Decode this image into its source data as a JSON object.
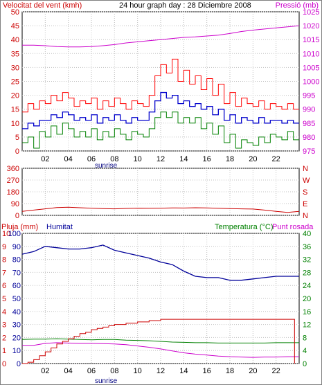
{
  "header": {
    "wind_title": "Velocitat del vent (kmh)",
    "graph_title": "24 hour graph day : 28 Diciembre 2008",
    "pressure_title": "Pressió (mb)"
  },
  "hours": [
    "02",
    "04",
    "06",
    "08",
    "10",
    "12",
    "14",
    "16",
    "18",
    "20",
    "22"
  ],
  "sunrise_label": "sunrise",
  "colors": {
    "frame": "#000000",
    "grid": "#c0c0c0",
    "wind_gust": "#ff0000",
    "wind_avg": "#0000cc",
    "wind_low": "#008000",
    "pressure": "#cc00cc",
    "direction": "#cc0000",
    "rain": "#cc0000",
    "humidity": "#000099",
    "temperature": "#008000",
    "dewpoint": "#cc00cc",
    "wind_axis_text": "#cc0000",
    "pressure_axis_text": "#cc00cc",
    "rain_axis_text": "#cc0000",
    "humidity_axis_text": "#000099",
    "temperature_axis_text": "#008000"
  },
  "chart_data": [
    {
      "type": "line",
      "panel": "wind",
      "title": "24 hour graph day : 28 Diciembre 2008",
      "x_range": [
        0,
        24
      ],
      "x_ticks": [
        "02",
        "04",
        "06",
        "08",
        "10",
        "12",
        "14",
        "16",
        "18",
        "20",
        "22"
      ],
      "left_axis": {
        "label": "Velocitat del vent (kmh)",
        "range": [
          0,
          50
        ],
        "ticks": [
          "0",
          "5",
          "10",
          "15",
          "20",
          "25",
          "30",
          "35",
          "40",
          "45",
          "50"
        ]
      },
      "right_axis": {
        "label": "Pressió (mb)",
        "range": [
          975,
          1025
        ],
        "ticks": [
          "975",
          "980",
          "985",
          "990",
          "995",
          "1000",
          "1005",
          "1010",
          "1015",
          "1020",
          "1025"
        ]
      },
      "grid": true,
      "series": [
        {
          "key": "wind_gust",
          "axis": "left",
          "x": [
            0,
            0.5,
            1,
            1.5,
            2,
            2.5,
            3,
            3.5,
            4,
            4.5,
            5,
            5.5,
            6,
            6.5,
            7,
            7.5,
            8,
            8.5,
            9,
            9.5,
            10,
            10.5,
            11,
            11.5,
            12,
            12.5,
            13,
            13.5,
            14,
            14.5,
            15,
            15.5,
            16,
            16.5,
            17,
            17.5,
            18,
            18.5,
            19,
            19.5,
            20,
            20.5,
            21,
            21.5,
            22,
            22.5,
            23,
            23.5
          ],
          "values": [
            14,
            17,
            15,
            18,
            17,
            20,
            18,
            21,
            19,
            16,
            18,
            17,
            19,
            15,
            18,
            16,
            19,
            17,
            15,
            18,
            17,
            16,
            20,
            27,
            31,
            28,
            33,
            25,
            29,
            24,
            27,
            22,
            26,
            20,
            24,
            17,
            21,
            16,
            19,
            17,
            16,
            18,
            15,
            17,
            16,
            15,
            17,
            15
          ]
        },
        {
          "key": "wind_avg",
          "axis": "left",
          "x": [
            0,
            0.5,
            1,
            1.5,
            2,
            2.5,
            3,
            3.5,
            4,
            4.5,
            5,
            5.5,
            6,
            6.5,
            7,
            7.5,
            8,
            8.5,
            9,
            9.5,
            10,
            10.5,
            11,
            11.5,
            12,
            12.5,
            13,
            13.5,
            14,
            14.5,
            15,
            15.5,
            16,
            16.5,
            17,
            17.5,
            18,
            18.5,
            19,
            19.5,
            20,
            20.5,
            21,
            21.5,
            22,
            22.5,
            23,
            23.5
          ],
          "values": [
            8,
            10,
            9,
            11,
            11,
            13,
            12,
            14,
            13,
            11,
            12,
            11,
            13,
            10,
            12,
            11,
            13,
            11,
            10,
            12,
            11,
            11,
            14,
            18,
            21,
            19,
            20,
            17,
            18,
            16,
            17,
            15,
            16,
            13,
            15,
            11,
            13,
            10,
            12,
            11,
            10,
            12,
            10,
            11,
            11,
            10,
            11,
            10
          ]
        },
        {
          "key": "wind_low",
          "axis": "left",
          "x": [
            0,
            0.5,
            1,
            1.5,
            2,
            2.5,
            3,
            3.5,
            4,
            4.5,
            5,
            5.5,
            6,
            6.5,
            7,
            7.5,
            8,
            8.5,
            9,
            9.5,
            10,
            10.5,
            11,
            11.5,
            12,
            12.5,
            13,
            13.5,
            14,
            14.5,
            15,
            15.5,
            16,
            16.5,
            17,
            17.5,
            18,
            18.5,
            19,
            19.5,
            20,
            20.5,
            21,
            21.5,
            22,
            22.5,
            23,
            23.5
          ],
          "values": [
            3,
            5,
            1,
            7,
            5,
            9,
            6,
            10,
            8,
            5,
            7,
            5,
            8,
            4,
            7,
            5,
            8,
            6,
            4,
            7,
            6,
            5,
            8,
            12,
            14,
            12,
            14,
            10,
            12,
            10,
            12,
            8,
            10,
            6,
            9,
            3,
            6,
            1,
            4,
            3,
            2,
            5,
            3,
            6,
            5,
            4,
            7,
            4
          ]
        },
        {
          "key": "pressure",
          "axis": "right",
          "x": [
            0,
            1,
            2,
            3,
            4,
            5,
            6,
            7,
            8,
            9,
            10,
            11,
            12,
            13,
            14,
            15,
            16,
            17,
            18,
            19,
            20,
            21,
            22,
            23,
            24
          ],
          "values": [
            1013,
            1013,
            1012.8,
            1012.5,
            1012.4,
            1012.4,
            1012.5,
            1012.8,
            1013.2,
            1013.8,
            1014.2,
            1014.6,
            1015,
            1015.4,
            1015.8,
            1016,
            1016.3,
            1016.6,
            1017.2,
            1017.9,
            1018.4,
            1018.8,
            1019.2,
            1019.6,
            1020
          ]
        }
      ]
    },
    {
      "type": "line",
      "panel": "direction",
      "x_range": [
        0,
        24
      ],
      "left_axis": {
        "range": [
          0,
          360
        ],
        "ticks": [
          "0",
          "90",
          "180",
          "270",
          "360"
        ]
      },
      "right_axis": {
        "ticks": [
          "N",
          "E",
          "S",
          "W",
          "N"
        ]
      },
      "grid": true,
      "series": [
        {
          "key": "direction",
          "axis": "left",
          "x": [
            0,
            1,
            2,
            3,
            4,
            5,
            6,
            7,
            8,
            9,
            10,
            11,
            12,
            13,
            14,
            15,
            16,
            17,
            18,
            19,
            20,
            21,
            22,
            23,
            24
          ],
          "values": [
            30,
            40,
            50,
            60,
            62,
            58,
            55,
            52,
            50,
            53,
            55,
            54,
            55,
            57,
            56,
            58,
            57,
            54,
            52,
            50,
            48,
            40,
            30,
            22,
            30
          ]
        }
      ]
    },
    {
      "type": "line",
      "panel": "humidity_temperature",
      "x_range": [
        0,
        24
      ],
      "x_ticks": [
        "02",
        "04",
        "06",
        "08",
        "10",
        "12",
        "14",
        "16",
        "18",
        "20",
        "22"
      ],
      "left_axis_rain": {
        "label": "Pluja (mm)",
        "ticks": [
          "0",
          "1",
          "2",
          "3",
          "4",
          "5",
          "6",
          "7",
          "8",
          "9",
          "10"
        ]
      },
      "left_axis_humidity": {
        "label": "Humitat",
        "range": [
          0,
          100
        ],
        "ticks": [
          "0",
          "10",
          "20",
          "30",
          "40",
          "50",
          "60",
          "70",
          "80",
          "90",
          "100"
        ]
      },
      "right_axis": {
        "label": "Temperatura (°C)",
        "range": [
          0,
          40
        ],
        "ticks": [
          "0",
          "4",
          "8",
          "12",
          "16",
          "20",
          "24",
          "28",
          "32",
          "36",
          "40"
        ]
      },
      "grid": true,
      "series": [
        {
          "key": "humidity",
          "axis": "humidity",
          "x": [
            0,
            1,
            2,
            3,
            4,
            5,
            6,
            7,
            8,
            9,
            10,
            11,
            12,
            13,
            14,
            15,
            16,
            17,
            18,
            19,
            20,
            21,
            22,
            23,
            24
          ],
          "values": [
            84,
            86,
            90,
            89,
            88,
            88,
            89,
            91,
            87,
            85,
            83,
            81,
            78,
            76,
            71,
            67,
            66,
            66,
            64,
            64,
            65,
            66,
            67,
            67,
            67
          ]
        },
        {
          "key": "temperature",
          "axis": "right",
          "x": [
            0,
            1,
            2,
            3,
            4,
            5,
            6,
            7,
            8,
            9,
            10,
            11,
            12,
            13,
            14,
            15,
            16,
            17,
            18,
            19,
            20,
            21,
            22,
            23,
            24
          ],
          "values": [
            7.4,
            7.5,
            7.5,
            7.6,
            7.5,
            7.4,
            7.3,
            7.4,
            7.4,
            7.2,
            7.1,
            7.0,
            6.8,
            6.6,
            6.5,
            6.4,
            6.4,
            6.3,
            6.3,
            6.3,
            6.3,
            6.3,
            6.4,
            6.4,
            6.4
          ]
        },
        {
          "key": "dewpoint",
          "axis": "right",
          "x": [
            0,
            1,
            2,
            3,
            4,
            5,
            6,
            7,
            8,
            9,
            10,
            11,
            12,
            13,
            14,
            15,
            16,
            17,
            18,
            19,
            20,
            21,
            22,
            23,
            24
          ],
          "values": [
            5.6,
            5.6,
            6.2,
            6.4,
            6.3,
            6.2,
            6.2,
            6.1,
            6.0,
            5.8,
            5.4,
            5.0,
            4.5,
            3.9,
            3.3,
            2.9,
            2.6,
            2.3,
            2.1,
            2.0,
            1.9,
            2.0,
            2.0,
            2.1,
            2.1
          ]
        },
        {
          "key": "rain",
          "axis": "rain",
          "x": [
            0,
            0.5,
            1,
            1.5,
            2,
            2.5,
            3,
            3.5,
            4,
            4.5,
            5,
            5.5,
            6,
            6.5,
            7,
            7.5,
            8,
            8.5,
            9,
            9.5,
            10,
            10.5,
            11,
            11.5,
            12,
            23.6
          ],
          "values": [
            0,
            0.1,
            0.3,
            0.6,
            0.9,
            1.2,
            1.5,
            1.7,
            1.9,
            2.1,
            2.3,
            2.4,
            2.6,
            2.7,
            2.8,
            2.9,
            3.0,
            3.0,
            3.1,
            3.1,
            3.2,
            3.2,
            3.3,
            3.3,
            3.4,
            3.4
          ]
        }
      ]
    }
  ],
  "temperature_label": "Temperatura (°C)",
  "dewpoint_label": "Punt rosada",
  "rain_label": "Pluja (mm)",
  "humidity_label": "Humitat"
}
